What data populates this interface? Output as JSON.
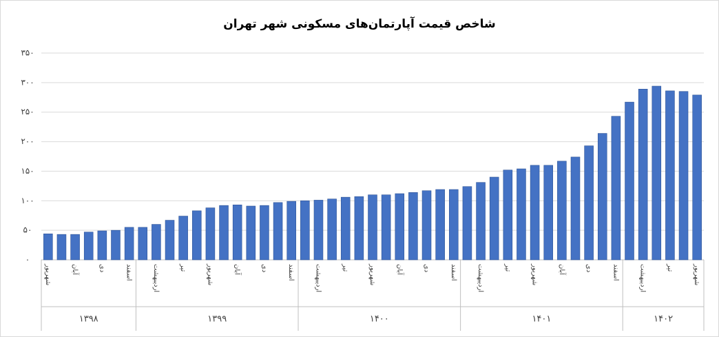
{
  "chart_data": {
    "type": "bar",
    "title": "شاخص قیمت آپارتمان‌های مسکونی شهر تهران",
    "categories": [
      "شهریور",
      null,
      "آبان",
      null,
      "دی",
      null,
      "اسفند",
      null,
      "اردیبهشت",
      null,
      "تیر",
      null,
      "شهریور",
      null,
      "آبان",
      null,
      "دی",
      null,
      "اسفند",
      null,
      "اردیبهشت",
      null,
      "تیر",
      null,
      "شهریور",
      null,
      "آبان",
      null,
      "دی",
      null,
      "اسفند",
      null,
      "اردیبهشت",
      null,
      "تیر",
      null,
      "شهریور",
      null,
      "آبان",
      null,
      "دی",
      null,
      "اسفند",
      null,
      "اردیبهشت",
      null,
      "تیر",
      null,
      "شهریور"
    ],
    "groups": [
      "۱۳۹۸",
      "۱۳۹۸",
      "۱۳۹۸",
      "۱۳۹۸",
      "۱۳۹۸",
      "۱۳۹۸",
      "۱۳۹۸",
      "۱۳۹۹",
      "۱۳۹۹",
      "۱۳۹۹",
      "۱۳۹۹",
      "۱۳۹۹",
      "۱۳۹۹",
      "۱۳۹۹",
      "۱۳۹۹",
      "۱۳۹۹",
      "۱۳۹۹",
      "۱۳۹۹",
      "۱۳۹۹",
      "۱۴۰۰",
      "۱۴۰۰",
      "۱۴۰۰",
      "۱۴۰۰",
      "۱۴۰۰",
      "۱۴۰۰",
      "۱۴۰۰",
      "۱۴۰۰",
      "۱۴۰۰",
      "۱۴۰۰",
      "۱۴۰۰",
      "۱۴۰۰",
      "۱۴۰۱",
      "۱۴۰۱",
      "۱۴۰۱",
      "۱۴۰۱",
      "۱۴۰۱",
      "۱۴۰۱",
      "۱۴۰۱",
      "۱۴۰۱",
      "۱۴۰۱",
      "۱۴۰۱",
      "۱۴۰۱",
      "۱۴۰۱",
      "۱۴۰۲",
      "۱۴۰۲",
      "۱۴۰۲",
      "۱۴۰۲",
      "۱۴۰۲",
      "۱۴۰۲"
    ],
    "values": [
      44,
      43,
      43,
      47,
      49,
      50,
      55,
      55,
      60,
      67,
      74,
      83,
      88,
      92,
      93,
      91,
      92,
      97,
      99,
      100,
      101,
      103,
      106,
      107,
      110,
      110,
      112,
      114,
      117,
      119,
      119,
      124,
      131,
      140,
      152,
      154,
      160,
      160,
      167,
      174,
      193,
      214,
      243,
      267,
      289,
      294,
      286,
      285,
      279
    ],
    "color": "#4472c4",
    "ylim": [
      0,
      350
    ],
    "yticks": [
      {
        "value": 0,
        "label": "۰"
      },
      {
        "value": 50,
        "label": "۵۰"
      },
      {
        "value": 100,
        "label": "۱۰۰"
      },
      {
        "value": 150,
        "label": "۱۵۰"
      },
      {
        "value": 200,
        "label": "۲۰۰"
      },
      {
        "value": 250,
        "label": "۲۵۰"
      },
      {
        "value": 300,
        "label": "۳۰۰"
      },
      {
        "value": 350,
        "label": "۳۵۰"
      }
    ],
    "grid": true
  }
}
